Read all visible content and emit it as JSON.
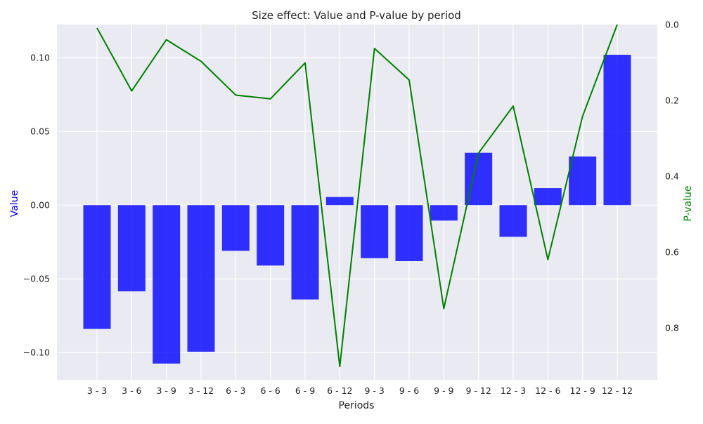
{
  "chart_data": {
    "type": "bar",
    "title": "Size effect: Value and P-value by period",
    "xlabel": "Periods",
    "ylabel": "Value",
    "y2label": "P-value",
    "categories": [
      "3 - 3",
      "3 - 6",
      "3 - 9",
      "3 - 12",
      "6 - 3",
      "6 - 6",
      "6 - 9",
      "6 - 12",
      "9 - 3",
      "9 - 6",
      "9 - 9",
      "9 - 12",
      "12 - 3",
      "12 - 6",
      "12 - 9",
      "12 - 12"
    ],
    "series": [
      {
        "name": "Value",
        "type": "bar",
        "axis": "left",
        "color": "#0000ff",
        "values": [
          -0.084,
          -0.0585,
          -0.1075,
          -0.0995,
          -0.031,
          -0.041,
          -0.064,
          0.0055,
          -0.036,
          -0.038,
          -0.0105,
          0.0355,
          -0.0215,
          0.0115,
          0.033,
          0.102
        ]
      },
      {
        "name": "P-value",
        "type": "line",
        "axis": "right",
        "color": "#008000",
        "values": [
          0.009,
          0.175,
          0.04,
          0.097,
          0.186,
          0.196,
          0.101,
          0.902,
          0.063,
          0.146,
          0.749,
          0.339,
          0.215,
          0.62,
          0.242,
          0.0
        ]
      }
    ],
    "ylim": [
      -0.1185,
      0.1225
    ],
    "yticks": [
      -0.1,
      -0.05,
      0.0,
      0.05,
      0.1
    ],
    "ytick_labels": [
      "−0.10",
      "−0.05",
      "0.00",
      "0.05",
      "0.10"
    ],
    "y2lim_inverted": [
      0.0,
      0.937
    ],
    "y2ticks": [
      0.0,
      0.2,
      0.4,
      0.6,
      0.8
    ],
    "y2tick_labels": [
      "0.0",
      "0.2",
      "0.4",
      "0.6",
      "0.8"
    ],
    "grid": true,
    "background": "#eaeaf2",
    "grid_color": "#ffffff",
    "label_colors": {
      "ylabel": "#0000ff",
      "y2label": "#008000"
    }
  }
}
